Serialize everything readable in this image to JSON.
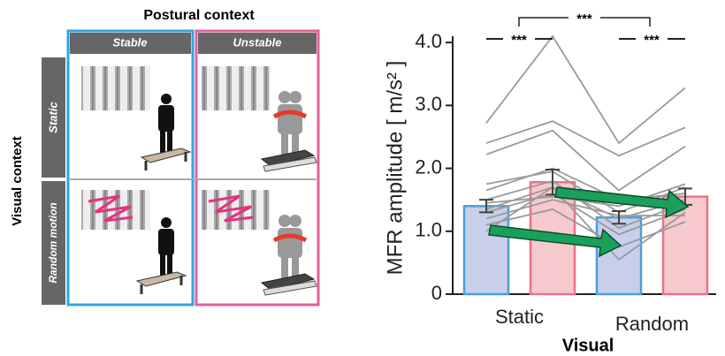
{
  "diagram": {
    "title": "Postural context",
    "columns": [
      "Stable",
      "Unstable"
    ],
    "row_axis": "Visual context",
    "rows": [
      "Static",
      "Random motion"
    ]
  },
  "chart_data": {
    "type": "bar",
    "ylabel": "MFR amplitude [ m/s² ]",
    "xlabel": "Visual",
    "categories": [
      "Static",
      "Random"
    ],
    "series": [
      {
        "color": "#c8cfea",
        "edge": "#4a9fd8",
        "values": [
          1.4,
          1.22
        ],
        "errors": [
          0.1,
          0.1
        ]
      },
      {
        "color": "#f6c9cd",
        "edge": "#e8738c",
        "values": [
          1.78,
          1.55
        ],
        "errors": [
          0.2,
          0.13
        ]
      }
    ],
    "subjects": [
      [
        2.72,
        4.1,
        2.4,
        3.28
      ],
      [
        2.4,
        2.75,
        2.2,
        2.65
      ],
      [
        2.22,
        2.6,
        1.65,
        2.35
      ],
      [
        1.75,
        1.95,
        1.3,
        1.7
      ],
      [
        1.65,
        2.0,
        1.5,
        1.6
      ],
      [
        1.5,
        1.8,
        1.05,
        1.45
      ],
      [
        1.35,
        1.7,
        1.2,
        1.5
      ],
      [
        1.3,
        1.6,
        0.95,
        1.35
      ],
      [
        1.2,
        1.5,
        1.25,
        1.25
      ],
      [
        1.1,
        1.35,
        0.75,
        1.15
      ],
      [
        1.0,
        1.7,
        0.55,
        1.3
      ],
      [
        1.45,
        1.55,
        1.4,
        1.75
      ]
    ],
    "significance": [
      "***",
      "***",
      "***"
    ],
    "ylim": [
      0,
      4.1
    ],
    "yticks": [
      0,
      {
        "value": 1,
        "label": "1.0"
      },
      {
        "value": 2,
        "label": "2.0"
      },
      {
        "value": 3,
        "label": "3.0"
      },
      {
        "value": 4,
        "label": "4.0"
      }
    ]
  }
}
